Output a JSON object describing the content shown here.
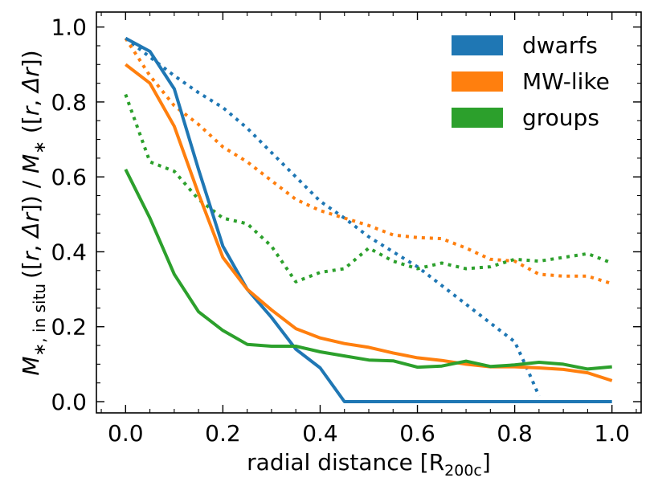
{
  "chart_data": {
    "type": "line",
    "xlabel": "radial distance [R",
    "xlabel_sub": "200c",
    "xlabel_close": "]",
    "ylabel": {
      "m1": "M",
      "star1": "∗",
      "sub": ", in situ",
      "mid1": "([",
      "r1": "r",
      "mid2": ", ",
      "dr1": "Δr",
      "mid3": "]) / ",
      "m2": "M",
      "star2": "∗",
      "mid4": " ([",
      "r2": "r",
      "mid5": ", ",
      "dr2": "Δr",
      "mid6": "])"
    },
    "xlim": [
      -0.06,
      1.06
    ],
    "ylim": [
      -0.03,
      1.04
    ],
    "xticks": [
      0.0,
      0.2,
      0.4,
      0.6,
      0.8,
      1.0
    ],
    "xtick_labels": [
      "0.0",
      "0.2",
      "0.4",
      "0.6",
      "0.8",
      "1.0"
    ],
    "yticks": [
      0.0,
      0.2,
      0.4,
      0.6,
      0.8,
      1.0
    ],
    "ytick_labels": [
      "0.0",
      "0.2",
      "0.4",
      "0.6",
      "0.8",
      "1.0"
    ],
    "x": [
      0.0,
      0.05,
      0.1,
      0.15,
      0.2,
      0.25,
      0.3,
      0.35,
      0.4,
      0.45,
      0.5,
      0.55,
      0.6,
      0.65,
      0.7,
      0.75,
      0.8,
      0.85,
      0.9,
      0.95,
      1.0
    ],
    "legend_position": "top-right",
    "legend": [
      {
        "label": "dwarfs",
        "color": "#1f77b4"
      },
      {
        "label": "MW-like",
        "color": "#ff7f0e"
      },
      {
        "label": "groups",
        "color": "#2ca02c"
      }
    ],
    "series": [
      {
        "group": "dwarfs",
        "style": "solid",
        "color": "#1f77b4",
        "values": [
          0.97,
          0.935,
          0.835,
          0.62,
          0.415,
          0.3,
          0.225,
          0.14,
          0.09,
          0.0,
          0.0,
          0.0,
          0.0,
          0.0,
          0.0,
          0.0,
          0.0,
          0.0,
          0.0,
          0.0,
          0.0
        ]
      },
      {
        "group": "MW-like",
        "style": "solid",
        "color": "#ff7f0e",
        "values": [
          0.9,
          0.85,
          0.735,
          0.555,
          0.385,
          0.3,
          0.245,
          0.195,
          0.17,
          0.155,
          0.145,
          0.13,
          0.117,
          0.11,
          0.1,
          0.093,
          0.093,
          0.09,
          0.086,
          0.077,
          0.056
        ]
      },
      {
        "group": "groups",
        "style": "solid",
        "color": "#2ca02c",
        "values": [
          0.62,
          0.49,
          0.34,
          0.24,
          0.19,
          0.153,
          0.148,
          0.148,
          0.133,
          0.122,
          0.111,
          0.109,
          0.092,
          0.095,
          0.108,
          0.094,
          0.098,
          0.105,
          0.1,
          0.087,
          0.093
        ]
      },
      {
        "group": "dwarfs",
        "style": "dotted",
        "color": "#1f77b4",
        "x": [
          0.0,
          0.05,
          0.1,
          0.15,
          0.2,
          0.25,
          0.3,
          0.35,
          0.4,
          0.45,
          0.5,
          0.55,
          0.6,
          0.65,
          0.7,
          0.75,
          0.8,
          0.825,
          0.85
        ],
        "values": [
          0.97,
          0.92,
          0.87,
          0.825,
          0.785,
          0.73,
          0.665,
          0.6,
          0.535,
          0.49,
          0.44,
          0.4,
          0.36,
          0.31,
          0.26,
          0.21,
          0.16,
          0.09,
          0.015
        ]
      },
      {
        "group": "MW-like",
        "style": "dotted",
        "color": "#ff7f0e",
        "values": [
          0.97,
          0.87,
          0.79,
          0.74,
          0.68,
          0.64,
          0.59,
          0.54,
          0.51,
          0.49,
          0.47,
          0.445,
          0.438,
          0.435,
          0.41,
          0.38,
          0.375,
          0.34,
          0.335,
          0.335,
          0.315
        ]
      },
      {
        "group": "groups",
        "style": "dotted",
        "color": "#2ca02c",
        "values": [
          0.82,
          0.64,
          0.615,
          0.54,
          0.49,
          0.475,
          0.415,
          0.32,
          0.345,
          0.355,
          0.41,
          0.375,
          0.355,
          0.37,
          0.355,
          0.36,
          0.38,
          0.375,
          0.385,
          0.395,
          0.37
        ]
      }
    ]
  }
}
